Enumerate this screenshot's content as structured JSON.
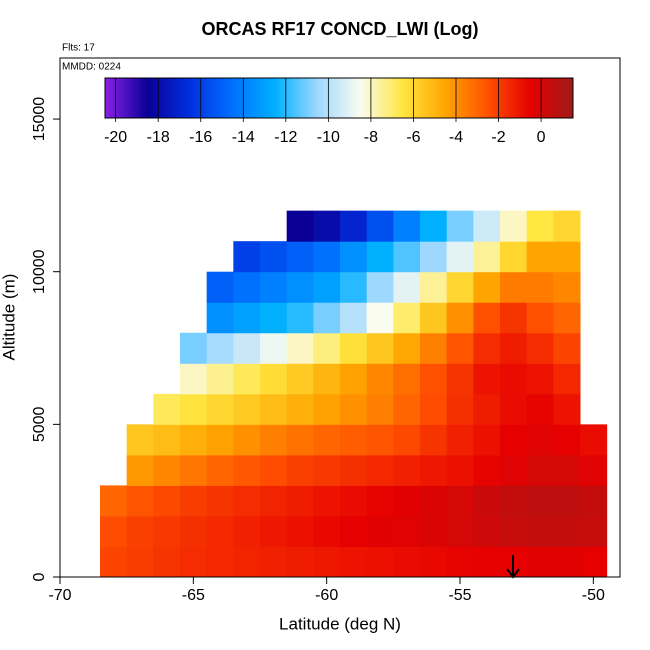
{
  "chart_data": {
    "type": "heatmap",
    "title": "ORCAS RF17 CONCD_LWI (Log)",
    "annotations": [
      "Flts: 17",
      "MMDD: 0224"
    ],
    "x_label": "Latitude (deg N)",
    "y_label": "Altitude (m)",
    "xlim": [
      -70,
      -49
    ],
    "ylim": [
      0,
      17000
    ],
    "xticks": [
      -70,
      -65,
      -60,
      -55,
      -50
    ],
    "yticks": [
      0,
      5000,
      10000,
      15000
    ],
    "colorbar_lim": [
      -20.5,
      1.5
    ],
    "colorbar_ticks": [
      -20,
      -18,
      -16,
      -14,
      -12,
      -10,
      -8,
      -6,
      -4,
      -2,
      0
    ],
    "colormap": [
      "#8b20e8",
      "#0a0096",
      "#0030e0",
      "#0070ff",
      "#00b0ff",
      "#9fd8ff",
      "#fafcf0",
      "#ffe640",
      "#ffa500",
      "#ff5000",
      "#e60000",
      "#a01a1a"
    ],
    "x": [
      -68,
      -67,
      -66,
      -65,
      -64,
      -63,
      -62,
      -61,
      -60,
      -59,
      -58,
      -57,
      -56,
      -55,
      -54,
      -53,
      -52,
      -51,
      -50
    ],
    "y": [
      500,
      1500,
      2500,
      3500,
      4500,
      5500,
      6500,
      7500,
      8500,
      9500,
      10500,
      11500
    ],
    "z": [
      [
        -2.2,
        -2,
        -1.8,
        -1.6,
        -1.5,
        -1.4,
        -1.3,
        -1.2,
        -1.1,
        -1,
        -0.9,
        -0.8,
        -0.7,
        -0.6,
        -0.5,
        -0.5,
        -0.4,
        -0.4,
        -0.5
      ],
      [
        -2.4,
        -2.1,
        -1.9,
        -1.7,
        -1.5,
        -1.3,
        -1.1,
        -0.9,
        -0.7,
        -0.5,
        -0.4,
        -0.3,
        -0.2,
        0,
        0.2,
        0.4,
        0.5,
        0.5,
        0.4
      ],
      [
        -3,
        -2.6,
        -2.3,
        -2,
        -1.8,
        -1.6,
        -1.4,
        -1.2,
        -1,
        -0.8,
        -0.6,
        -0.4,
        -0.2,
        0,
        0.3,
        0.5,
        0.6,
        0.6,
        0.5
      ],
      [
        null,
        -4.2,
        -3.8,
        -3.4,
        -3,
        -2.7,
        -2.4,
        -2.1,
        -1.9,
        -1.7,
        -1.5,
        -1.3,
        -1.1,
        -0.9,
        -0.6,
        -0.3,
        0,
        0,
        -0.3
      ],
      [
        null,
        -5.5,
        -5.2,
        -4.8,
        -4.4,
        -4,
        -3.6,
        -3.3,
        -3,
        -2.8,
        -2.6,
        -2.3,
        -1.8,
        -1.3,
        -0.9,
        -0.5,
        -0.3,
        -0.5,
        -0.8
      ],
      [
        null,
        null,
        -6.8,
        -6.4,
        -6,
        -5.6,
        -5.2,
        -4.8,
        -4.4,
        -4,
        -3.6,
        -3,
        -2.4,
        -1.7,
        -1.2,
        -0.8,
        -0.6,
        -1,
        null
      ],
      [
        null,
        null,
        null,
        -8,
        -7.4,
        -6.8,
        -6.2,
        -5.6,
        -5,
        -4.4,
        -3.8,
        -3.2,
        -2.5,
        -1.8,
        -1,
        -0.8,
        -1,
        -1.5,
        null
      ],
      [
        null,
        null,
        null,
        -11,
        -10.3,
        -9.6,
        -8.8,
        -8,
        -7.2,
        -6.3,
        -5.5,
        -4.6,
        -3.6,
        -2.6,
        -1.6,
        -1.2,
        -1.6,
        -2.2,
        null
      ],
      [
        null,
        null,
        null,
        null,
        -13.5,
        -13,
        -12.5,
        -12,
        -11,
        -10,
        -8.5,
        -7,
        -5.5,
        -4,
        -2.5,
        -1.8,
        -2.5,
        -3,
        null
      ],
      [
        null,
        null,
        null,
        null,
        -15,
        -14.5,
        -14,
        -13.5,
        -13,
        -12,
        -10.5,
        -9,
        -7.5,
        -6,
        -4.5,
        -3.5,
        -3.5,
        -3.8,
        null
      ],
      [
        null,
        null,
        null,
        null,
        null,
        -16,
        -15.5,
        -15,
        -14.5,
        -13.5,
        -12.5,
        -11.5,
        -10.5,
        -9,
        -7.5,
        -6,
        -4.5,
        -4.5,
        null
      ],
      [
        null,
        null,
        null,
        null,
        null,
        null,
        null,
        -18.5,
        -18,
        -17,
        -15.5,
        -14,
        -12.5,
        -11,
        -9.5,
        -8,
        -6.5,
        -6,
        null
      ]
    ]
  }
}
